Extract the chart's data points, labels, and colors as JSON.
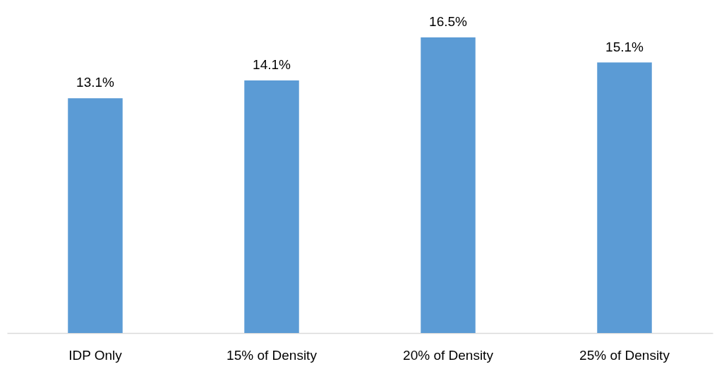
{
  "chart_data": {
    "type": "bar",
    "categories": [
      "IDP Only",
      "15% of Density",
      "20% of Density",
      "25% of Density"
    ],
    "values": [
      13.1,
      14.1,
      16.5,
      15.1
    ],
    "value_labels": [
      "13.1%",
      "14.1%",
      "16.5%",
      "15.1%"
    ],
    "color": "#5b9bd5"
  }
}
